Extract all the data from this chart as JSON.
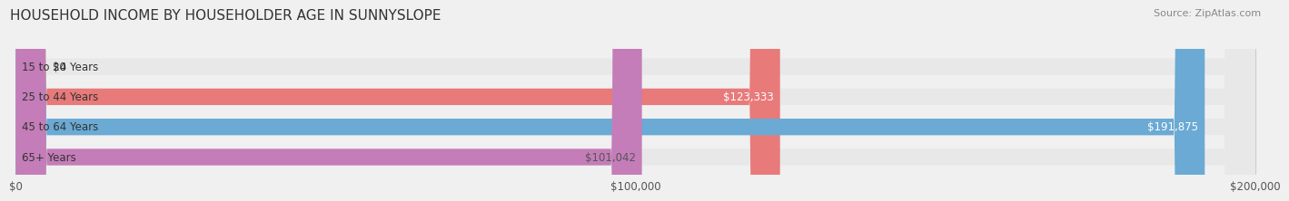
{
  "title": "HOUSEHOLD INCOME BY HOUSEHOLDER AGE IN SUNNYSLOPE",
  "source": "Source: ZipAtlas.com",
  "categories": [
    "15 to 24 Years",
    "25 to 44 Years",
    "45 to 64 Years",
    "65+ Years"
  ],
  "values": [
    0,
    123333,
    191875,
    101042
  ],
  "bar_colors": [
    "#e8c98a",
    "#e87a7a",
    "#6aaad4",
    "#c47db8"
  ],
  "bar_label_colors": [
    "#555555",
    "#ffffff",
    "#ffffff",
    "#555555"
  ],
  "value_labels": [
    "$0",
    "$123,333",
    "$191,875",
    "$101,042"
  ],
  "xlim": [
    0,
    200000
  ],
  "xticks": [
    0,
    100000,
    200000
  ],
  "xtick_labels": [
    "$0",
    "$100,000",
    "$200,000"
  ],
  "bg_color": "#f0f0f0",
  "bar_bg_color": "#e8e8e8",
  "title_fontsize": 11,
  "source_fontsize": 8,
  "label_fontsize": 8.5,
  "tick_fontsize": 8.5,
  "bar_height": 0.55
}
